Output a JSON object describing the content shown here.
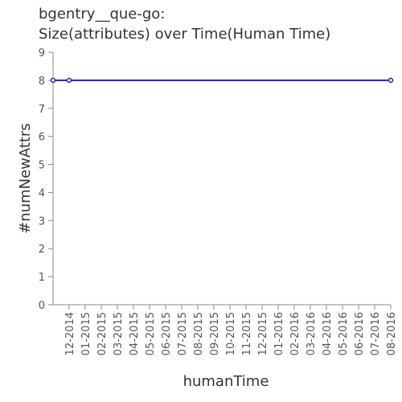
{
  "chart_data": {
    "type": "line",
    "title_line1": "bgentry__que-go:",
    "title_line2": "Size(attributes) over Time(Human Time)",
    "xlabel": "humanTime",
    "ylabel": "#numNewAttrs",
    "ylim": [
      0,
      9
    ],
    "yticks": [
      "0",
      "1",
      "2",
      "3",
      "4",
      "5",
      "6",
      "7",
      "8",
      "9"
    ],
    "xticks": [
      "12-2014",
      "01-2015",
      "02-2015",
      "03-2015",
      "04-2015",
      "05-2015",
      "06-2015",
      "07-2015",
      "08-2015",
      "09-2015",
      "10-2015",
      "11-2015",
      "12-2015",
      "01-2016",
      "02-2016",
      "03-2016",
      "04-2016",
      "05-2016",
      "06-2016",
      "07-2016",
      "08-2016"
    ],
    "series": [
      {
        "color": "#1f1fb4",
        "points": [
          {
            "x": "2014-11",
            "y": 8
          },
          {
            "x": "2014-12",
            "y": 8
          },
          {
            "x": "2016-08",
            "y": 8
          }
        ]
      }
    ],
    "grid": false
  }
}
